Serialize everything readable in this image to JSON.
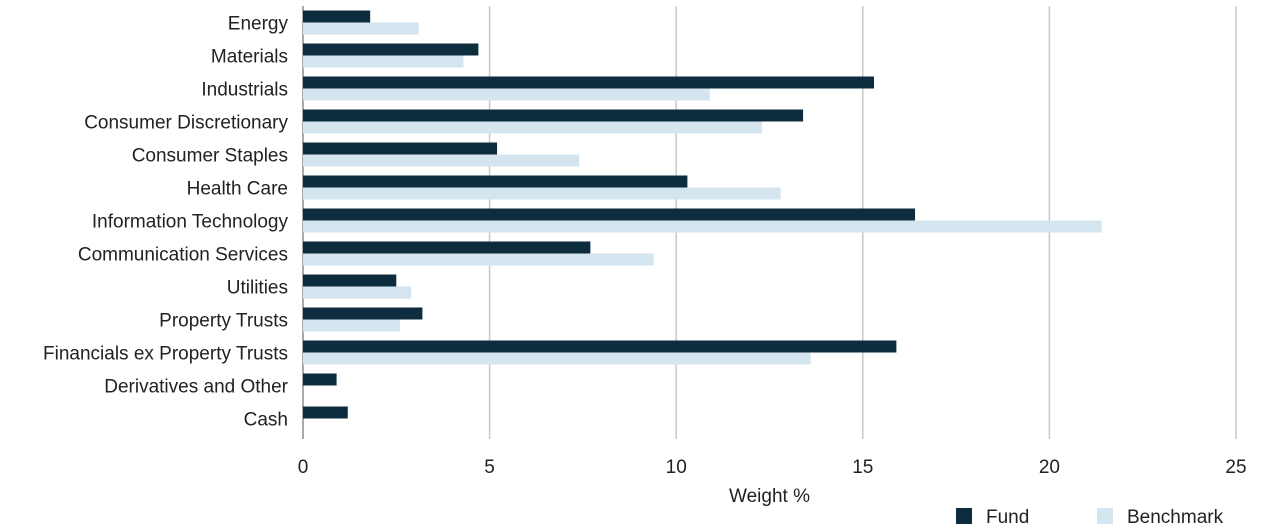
{
  "chart_data": {
    "type": "bar",
    "orientation": "horizontal",
    "categories": [
      "Energy",
      "Materials",
      "Industrials",
      "Consumer Discretionary",
      "Consumer Staples",
      "Health Care",
      "Information Technology",
      "Communication Services",
      "Utilities",
      "Property Trusts",
      "Financials ex Property Trusts",
      "Derivatives and Other",
      "Cash"
    ],
    "series": [
      {
        "name": "Fund",
        "color": "#0d2d3f",
        "values": [
          1.8,
          4.7,
          15.3,
          13.4,
          5.2,
          10.3,
          16.4,
          7.7,
          2.5,
          3.2,
          15.9,
          0.9,
          1.2
        ]
      },
      {
        "name": "Benchmark",
        "color": "#d5e5ef",
        "values": [
          3.1,
          4.3,
          10.9,
          12.3,
          7.4,
          12.8,
          21.4,
          9.4,
          2.9,
          2.6,
          13.6,
          0,
          0
        ]
      }
    ],
    "xlabel": "Weight %",
    "xlim": [
      0,
      25
    ],
    "xticks": [
      "0",
      "5",
      "10",
      "15",
      "20",
      "25"
    ],
    "grid": "vertical",
    "legend_position": "bottom-right",
    "gridline_color": "#c8c8c8"
  }
}
